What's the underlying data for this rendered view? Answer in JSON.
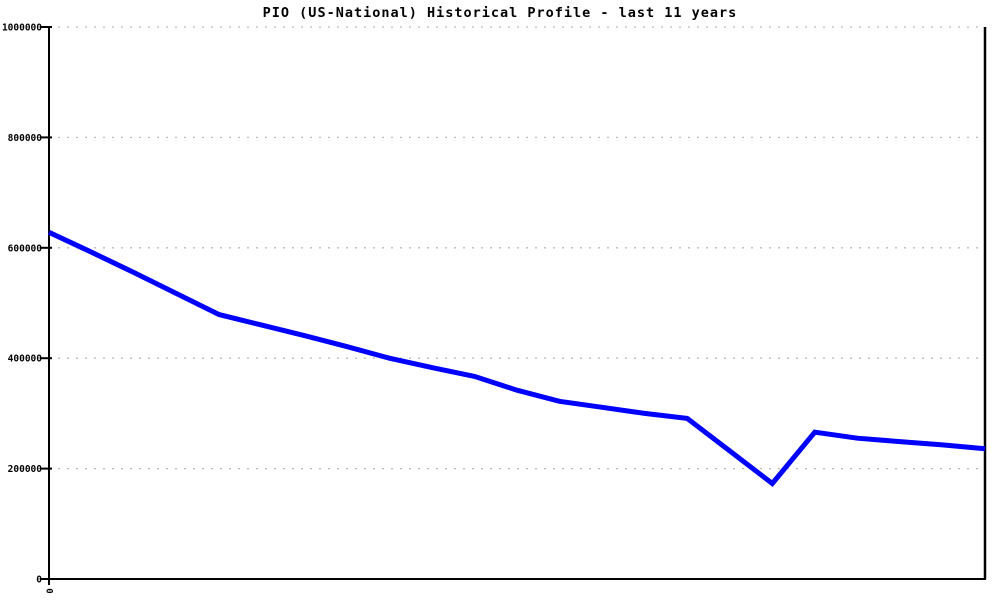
{
  "title": "PIO (US-National) Historical Profile - last 11 years",
  "colors": {
    "line": "#0000ff",
    "grid": "#bbbbbb",
    "axis": "#000000",
    "background": "#ffffff",
    "text": "#000000"
  },
  "chart_data": {
    "type": "line",
    "title": "PIO (US-National) Historical Profile - last 11 years",
    "xlabel": "",
    "ylabel": "",
    "x_index": [
      0,
      1,
      2,
      3,
      4,
      5,
      6,
      7,
      8,
      9,
      10,
      11,
      12,
      13,
      14,
      15,
      16,
      17,
      18,
      19,
      20,
      21,
      22
    ],
    "series": [
      {
        "name": "PIO (US-National)",
        "color": "#0000ff",
        "values": [
          628000,
          592000,
          555000,
          517000,
          479000,
          460000,
          441000,
          421000,
          400000,
          383000,
          367000,
          342000,
          322000,
          311000,
          300000,
          291000,
          232000,
          173000,
          266000,
          255000,
          249000,
          243000,
          236000
        ]
      }
    ],
    "ylim": [
      0,
      1000000
    ],
    "y_ticks": [
      0,
      200000,
      400000,
      600000,
      800000,
      1000000
    ],
    "x_tick_labels": [
      "0"
    ],
    "grid": "horizontal-dashed",
    "legend": "none"
  }
}
